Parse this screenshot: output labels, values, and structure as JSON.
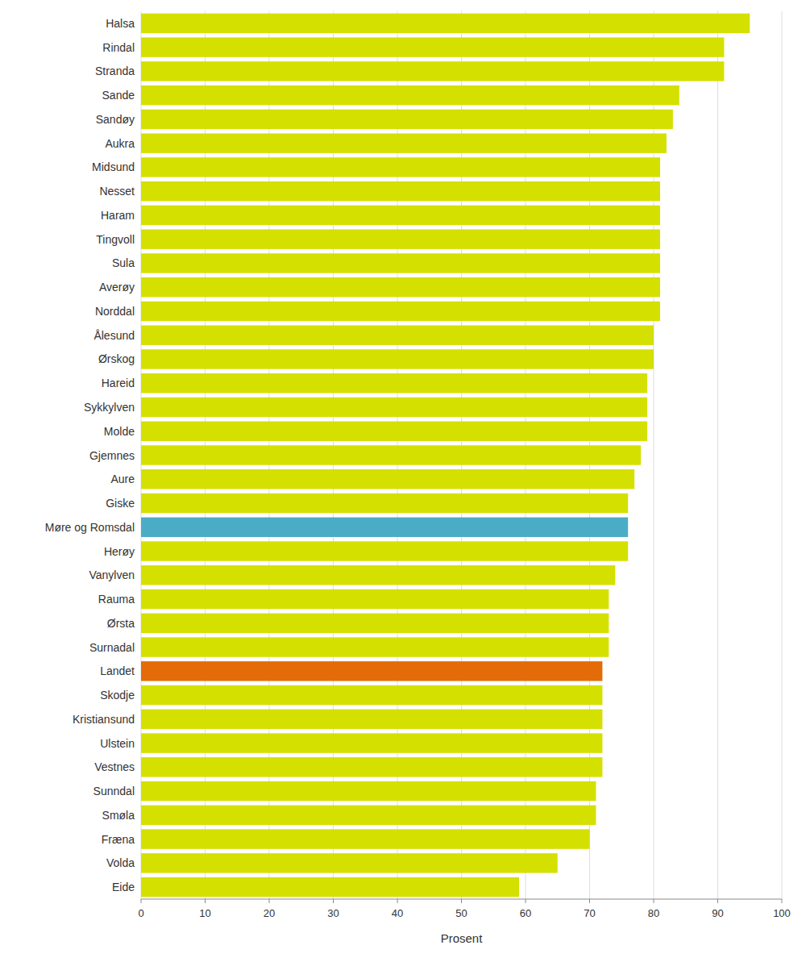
{
  "chart_data": {
    "type": "bar",
    "orientation": "horizontal",
    "categories": [
      "Halsa",
      "Rindal",
      "Stranda",
      "Sande",
      "Sandøy",
      "Aukra",
      "Midsund",
      "Nesset",
      "Haram",
      "Tingvoll",
      "Sula",
      "Averøy",
      "Norddal",
      "Ålesund",
      "Ørskog",
      "Hareid",
      "Sykkylven",
      "Molde",
      "Gjemnes",
      "Aure",
      "Giske",
      "Møre og Romsdal",
      "Herøy",
      "Vanylven",
      "Rauma",
      "Ørsta",
      "Surnadal",
      "Landet",
      "Skodje",
      "Kristiansund",
      "Ulstein",
      "Vestnes",
      "Sunndal",
      "Smøla",
      "Fræna",
      "Volda",
      "Eide"
    ],
    "values": [
      95,
      91,
      91,
      84,
      83,
      82,
      81,
      81,
      81,
      81,
      81,
      81,
      81,
      80,
      80,
      79,
      79,
      79,
      78,
      77,
      76,
      76,
      76,
      74,
      73,
      73,
      73,
      72,
      72,
      72,
      72,
      72,
      71,
      71,
      70,
      65,
      59
    ],
    "colors": [
      "#d4e000",
      "#d4e000",
      "#d4e000",
      "#d4e000",
      "#d4e000",
      "#d4e000",
      "#d4e000",
      "#d4e000",
      "#d4e000",
      "#d4e000",
      "#d4e000",
      "#d4e000",
      "#d4e000",
      "#d4e000",
      "#d4e000",
      "#d4e000",
      "#d4e000",
      "#d4e000",
      "#d4e000",
      "#d4e000",
      "#d4e000",
      "#4bacc6",
      "#d4e000",
      "#d4e000",
      "#d4e000",
      "#d4e000",
      "#d4e000",
      "#e36c09",
      "#d4e000",
      "#d4e000",
      "#d4e000",
      "#d4e000",
      "#d4e000",
      "#d4e000",
      "#d4e000",
      "#d4e000",
      "#d4e000"
    ],
    "xlabel": "Prosent",
    "xlim": [
      0,
      100
    ],
    "xticks": [
      0,
      10,
      20,
      30,
      40,
      50,
      60,
      70,
      80,
      90,
      100
    ],
    "grid": true
  }
}
